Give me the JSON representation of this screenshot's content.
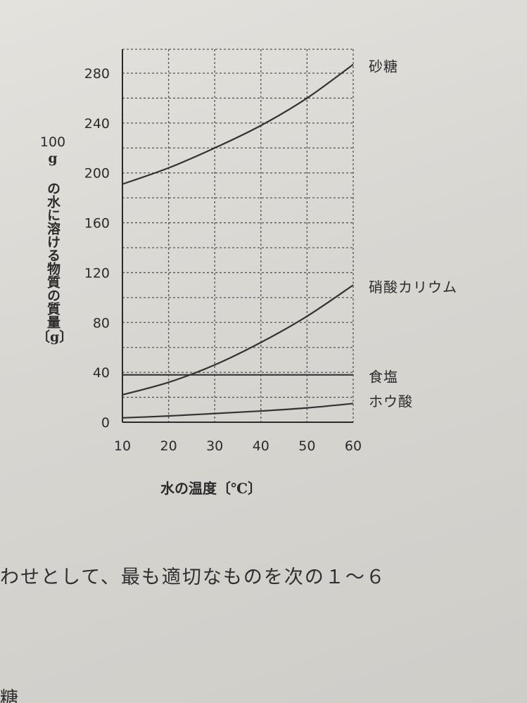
{
  "chart_data": {
    "type": "line",
    "xlabel": "水の温度〔℃〕",
    "ylabel_parts": [
      "100",
      "g の水に溶ける物質の質量",
      "〔g〕"
    ],
    "x": [
      10,
      20,
      30,
      40,
      50,
      60
    ],
    "x_ticks": [
      "10",
      "20",
      "30",
      "40",
      "50",
      "60"
    ],
    "y_ticks": [
      "0",
      "40",
      "80",
      "120",
      "160",
      "200",
      "240",
      "280"
    ],
    "xlim": [
      10,
      60
    ],
    "ylim": [
      0,
      290
    ],
    "grid": true,
    "series": [
      {
        "name": "砂糖",
        "values": [
          191,
          204,
          220,
          238,
          260,
          287
        ]
      },
      {
        "name": "硝酸カリウム",
        "values": [
          22,
          32,
          46,
          64,
          85,
          110
        ]
      },
      {
        "name": "食塩",
        "values": [
          38,
          38,
          38,
          38,
          38,
          38
        ]
      },
      {
        "name": "ホウ酸",
        "values": [
          3.5,
          5,
          7,
          9,
          11.5,
          15
        ]
      }
    ]
  },
  "text": {
    "question_line": "わせとして、最も適切なものを次の１～６",
    "bottom_fragment": "糖"
  }
}
